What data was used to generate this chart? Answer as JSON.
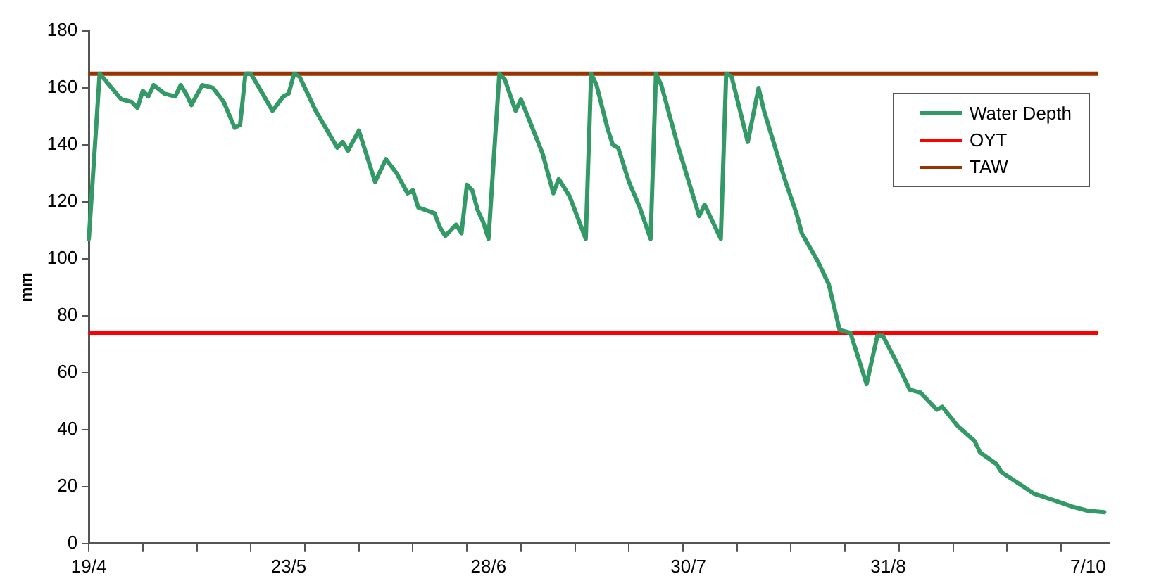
{
  "chart_data": {
    "type": "line",
    "ylabel": "mm",
    "ylim": [
      0,
      180
    ],
    "yticks": [
      0,
      20,
      40,
      60,
      80,
      100,
      120,
      140,
      160,
      180
    ],
    "categories": [
      "19/4",
      null,
      null,
      null,
      null,
      null,
      null,
      null,
      null,
      null,
      null,
      null,
      null,
      null,
      null,
      null,
      null,
      null,
      null,
      null,
      null,
      null,
      null,
      null,
      null,
      null,
      null,
      null,
      null,
      null,
      null,
      null,
      null,
      null,
      null,
      null,
      null,
      "23/5",
      null,
      null,
      null,
      null,
      null,
      null,
      null,
      null,
      null,
      null,
      null,
      null,
      null,
      null,
      null,
      null,
      null,
      null,
      null,
      null,
      null,
      null,
      null,
      null,
      null,
      null,
      null,
      null,
      null,
      null,
      null,
      null,
      null,
      null,
      null,
      null,
      "28/6",
      null,
      null,
      null,
      null,
      null,
      null,
      null,
      null,
      null,
      null,
      null,
      null,
      null,
      null,
      null,
      null,
      null,
      null,
      null,
      null,
      null,
      null,
      null,
      null,
      null,
      null,
      null,
      null,
      null,
      null,
      null,
      null,
      null,
      null,
      null,
      null,
      "30/7",
      null,
      null,
      null,
      null,
      null,
      null,
      null,
      null,
      null,
      null,
      null,
      null,
      null,
      null,
      null,
      null,
      null,
      null,
      null,
      null,
      null,
      null,
      null,
      null,
      null,
      null,
      null,
      null,
      null,
      null,
      null,
      null,
      null,
      null,
      null,
      null,
      "31/8",
      null,
      null,
      null,
      null,
      null,
      null,
      null,
      null,
      null,
      null,
      null,
      null,
      null,
      null,
      null,
      null,
      null,
      null,
      null,
      null,
      null,
      null,
      null,
      null,
      null,
      null,
      null,
      null,
      null,
      null,
      null,
      null,
      null,
      null,
      null,
      null,
      "7/10",
      null,
      null,
      null,
      null
    ],
    "grid": false,
    "legend": "top right",
    "marker": "none",
    "line_style": "solid",
    "series": [
      {
        "name": "Water Depth",
        "color": "#339966",
        "values": [
          107,
          null,
          165,
          null,
          null,
          null,
          156,
          null,
          155,
          153,
          159,
          157,
          161,
          null,
          158,
          null,
          157,
          161,
          158,
          154,
          null,
          161,
          null,
          160,
          null,
          155,
          null,
          146,
          147,
          165,
          165,
          null,
          null,
          null,
          152,
          null,
          157,
          158,
          165,
          164,
          null,
          null,
          152,
          null,
          null,
          null,
          139,
          141,
          138,
          null,
          145,
          null,
          null,
          127,
          null,
          135,
          null,
          130,
          null,
          123,
          124,
          118,
          null,
          null,
          116,
          111,
          108,
          null,
          112,
          109,
          126,
          124,
          117,
          113,
          107,
          null,
          165,
          163,
          null,
          152,
          156,
          null,
          null,
          null,
          137,
          null,
          123,
          128,
          null,
          122,
          null,
          null,
          107,
          165,
          161,
          null,
          146,
          140,
          139,
          null,
          127,
          null,
          118,
          null,
          107,
          165,
          161,
          null,
          null,
          140,
          null,
          null,
          null,
          115,
          119,
          null,
          null,
          107,
          165,
          164,
          null,
          null,
          141,
          null,
          160,
          152,
          null,
          null,
          null,
          127,
          null,
          116,
          109,
          null,
          null,
          99,
          null,
          91,
          null,
          75,
          null,
          74,
          68,
          null,
          56,
          null,
          73,
          73,
          null,
          null,
          62,
          null,
          54,
          null,
          53,
          null,
          null,
          47,
          48,
          null,
          null,
          41,
          null,
          null,
          36,
          32,
          null,
          null,
          28,
          25,
          null,
          null,
          null,
          20,
          null,
          17.5,
          null,
          null,
          null,
          15,
          null,
          null,
          13,
          null,
          null,
          11.5,
          null,
          null,
          11,
          null
        ]
      }
    ],
    "ref_lines": [
      {
        "axis": "y",
        "value": 74,
        "label": "OYT",
        "color": "#ff0000"
      },
      {
        "axis": "y",
        "value": 165,
        "label": "TAW",
        "color": "#993300"
      }
    ]
  }
}
